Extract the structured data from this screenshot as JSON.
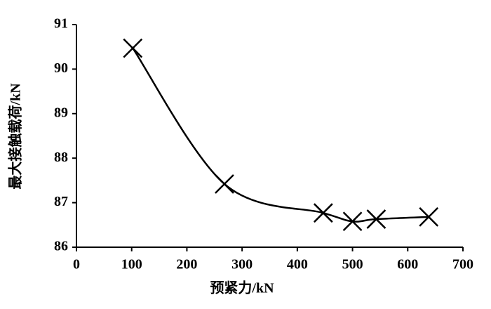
{
  "chart_data": {
    "type": "line",
    "smooth": true,
    "marker": "x",
    "x_label": "预紧力/kN",
    "y_label": "最大接触载荷/kN",
    "x": [
      102,
      268,
      447,
      500,
      543,
      638
    ],
    "series": [
      {
        "color": "#000000",
        "values": [
          90.47,
          87.42,
          86.77,
          86.58,
          86.63,
          86.68
        ]
      }
    ],
    "xlim": [
      0,
      700
    ],
    "xticks": [
      0,
      100,
      200,
      300,
      400,
      500,
      600,
      700
    ],
    "ylim": [
      86,
      91
    ],
    "yticks": [
      86,
      87,
      88,
      89,
      90,
      91
    ]
  }
}
